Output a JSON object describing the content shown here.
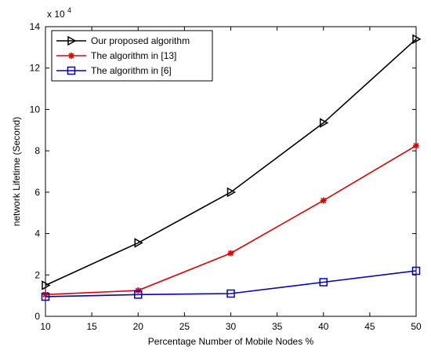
{
  "chart_data": {
    "type": "line",
    "xlabel": "Percentage Number of Mobile Nodes %",
    "ylabel": "network Lifetime (Second)",
    "y_multiplier": "x 10",
    "y_multiplier_exp": "4",
    "xlim": [
      10,
      50
    ],
    "ylim": [
      0,
      14
    ],
    "xticks": [
      10,
      15,
      20,
      25,
      30,
      35,
      40,
      45,
      50
    ],
    "yticks": [
      0,
      2,
      4,
      6,
      8,
      10,
      12,
      14
    ],
    "grid": false,
    "legend_position": "top-left",
    "x": [
      10,
      20,
      30,
      40,
      50
    ],
    "series": [
      {
        "name": "Our proposed algorithm",
        "values": [
          1.5,
          3.55,
          6.0,
          9.35,
          13.4
        ],
        "color": "#000000",
        "marker": "triangle-right"
      },
      {
        "name": "The algorithm in [13]",
        "values": [
          1.05,
          1.25,
          3.05,
          5.6,
          8.25
        ],
        "color": "#e00000",
        "marker": "star"
      },
      {
        "name": "The algorithm in [6]",
        "values": [
          0.95,
          1.05,
          1.1,
          1.65,
          2.2
        ],
        "color": "#0000c8",
        "marker": "square"
      }
    ]
  }
}
